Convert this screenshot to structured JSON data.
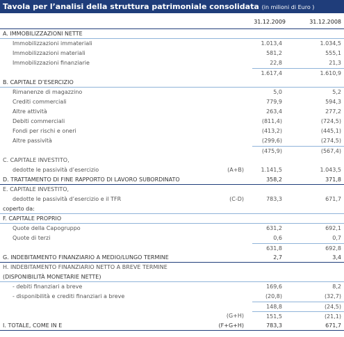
{
  "header": {
    "title": "Tavola per l’analisi della struttura patrimoniale consolidata",
    "unit": "(in milioni di Euro )"
  },
  "table": {
    "columns": [
      "31.12.2009",
      "31.12.2008"
    ],
    "rows": [
      {
        "label": "A.  IMMOBILIZZAZIONI NETTE"
      },
      {
        "label": "Immobilizzazioni immateriali",
        "v1": "1.013,4",
        "v2": "1.034,5"
      },
      {
        "label": "Immobilizzazioni materiali",
        "v1": "581,2",
        "v2": "555,1"
      },
      {
        "label": "Immobilizzazioni finanziarie",
        "v1": "22,8",
        "v2": "21,3"
      },
      {
        "v1": "1.617,4",
        "v2": "1.610,9"
      },
      {
        "label": "B.  CAPITALE D’ESERCIZIO"
      },
      {
        "label": "Rimanenze di magazzino",
        "v1": "5,0",
        "v2": "5,2"
      },
      {
        "label": "Crediti commerciali",
        "v1": "779,9",
        "v2": "594,3"
      },
      {
        "label": "Altre attività",
        "v1": "263,4",
        "v2": "277,2"
      },
      {
        "label": "Debiti commerciali",
        "v1": "(811,4)",
        "v2": "(724,5)"
      },
      {
        "label": "Fondi per rischi e oneri",
        "v1": "(413,2)",
        "v2": "(445,1)"
      },
      {
        "label": "Altre passività",
        "v1": "(299,6)",
        "v2": "(274,5)"
      },
      {
        "v1": "(475,9)",
        "v2": "(567,4)"
      },
      {
        "label": "C.  CAPITALE INVESTITO,"
      },
      {
        "label": "dedotte le passività d’esercizio",
        "code": "(A+B)",
        "v1": "1.141,5",
        "v2": "1.043,5"
      },
      {
        "label": "D.  TRATTAMENTO DI FINE RAPPORTO DI LAVORO SUBORDINATO",
        "v1": "358,2",
        "v2": "371,8"
      },
      {
        "label": "E.  CAPITALE INVESTITO,"
      },
      {
        "label": "dedotte le passività d’esercizio e il TFR",
        "code": "(C-D)",
        "v1": "783,3",
        "v2": "671,7"
      },
      {
        "label": "coperto da:"
      },
      {
        "label": "F.  CAPITALE PROPRIO"
      },
      {
        "label": "Quote della Capogruppo",
        "v1": "631,2",
        "v2": "692,1"
      },
      {
        "label": "Quote di terzi",
        "v1": "0,6",
        "v2": "0,7"
      },
      {
        "v1": "631,8",
        "v2": "692,8"
      },
      {
        "label": "G.  INDEBITAMENTO FINANZIARIO A MEDIO/LUNGO TERMINE",
        "v1": "2,7",
        "v2": "3,4"
      },
      {
        "label": "H.  INDEBITAMENTO FINANZIARIO NETTO A BREVE TERMINE"
      },
      {
        "label": "(DISPONIBILITÀ MONETARIE NETTE)"
      },
      {
        "label": "- debiti finanziari a breve",
        "v1": "169,6",
        "v2": "8,2"
      },
      {
        "label": "- disponibilità e crediti finanziari a breve",
        "v1": "(20,8)",
        "v2": "(32,7)"
      },
      {
        "v1": "148,8",
        "v2": "(24,5)"
      },
      {
        "code": "(G+H)",
        "v1": "151,5",
        "v2": "(21,1)"
      },
      {
        "label": "I.  TOTALE, COME IN E",
        "code": "(F+G+H)",
        "v1": "783,3",
        "v2": "671,7"
      }
    ]
  }
}
